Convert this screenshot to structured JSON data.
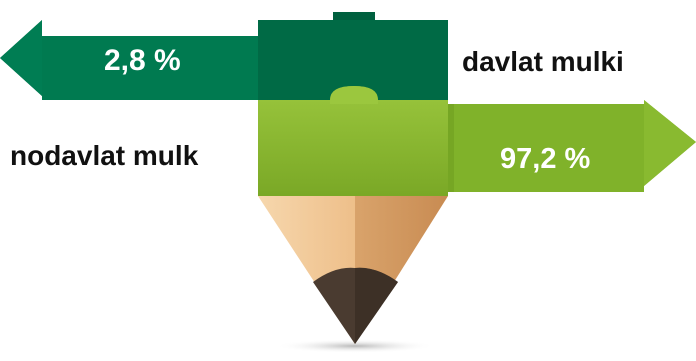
{
  "top_segment": {
    "value": "2,8 %",
    "label": "davlat mulki",
    "color": "#00714a"
  },
  "bottom_segment": {
    "value": "97,2 %",
    "label": "nodavlat mulk",
    "color": "#8cba2e"
  },
  "pencil": {
    "wood_color": "#f2c99a",
    "lead_color": "#4a3b30"
  }
}
